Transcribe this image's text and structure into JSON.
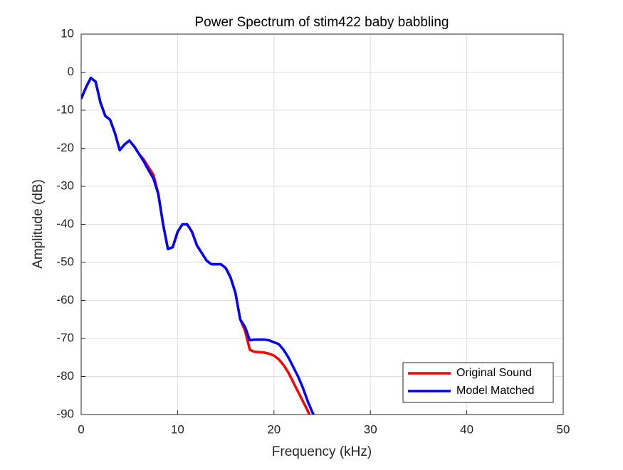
{
  "chart_data": {
    "type": "line",
    "title": "Power Spectrum of stim422 baby babbling",
    "xlabel": "Frequency (kHz)",
    "ylabel": "Amplitude (dB)",
    "x": [
      0,
      0.5,
      1,
      1.5,
      2,
      2.5,
      3,
      3.5,
      4,
      4.5,
      5,
      5.5,
      6,
      6.5,
      7,
      7.5,
      8,
      8.5,
      9,
      9.5,
      10,
      10.5,
      11,
      11.5,
      12,
      12.5,
      13,
      13.5,
      14,
      14.5,
      15,
      15.5,
      16,
      16.5,
      17,
      17.5,
      18,
      18.5,
      19,
      19.5,
      20,
      20.5,
      21,
      21.5,
      22,
      22.5,
      23,
      23.5,
      24,
      24.5
    ],
    "series": [
      {
        "name": "Original Sound",
        "color": "#ff0000",
        "values": [
          -7,
          -4,
          -1.5,
          -2.5,
          -8,
          -11.5,
          -12.5,
          -16,
          -20.5,
          -19,
          -18,
          -19.5,
          -21.5,
          -23,
          -25,
          -27,
          -32,
          -40,
          -46.5,
          -46,
          -42,
          -40,
          -40,
          -42,
          -45.5,
          -47.5,
          -49.5,
          -50.5,
          -50.5,
          -50.5,
          -51.5,
          -54,
          -58,
          -65,
          -68,
          -73,
          -73.5,
          -73.6,
          -73.7,
          -74,
          -74.5,
          -75.5,
          -77,
          -79,
          -81.5,
          -84,
          -86.5,
          -89,
          -92,
          -95
        ]
      },
      {
        "name": "Model Matched",
        "color": "#0000ff",
        "values": [
          -7,
          -4,
          -1.5,
          -2.5,
          -8,
          -11.5,
          -12.5,
          -16,
          -20.5,
          -19,
          -18,
          -19.5,
          -21.5,
          -23.5,
          -25.8,
          -28,
          -32,
          -40,
          -46.5,
          -46,
          -42,
          -40,
          -40,
          -42,
          -45.5,
          -47.5,
          -49.5,
          -50.5,
          -50.5,
          -50.5,
          -51.5,
          -54,
          -58,
          -65,
          -67,
          -70.5,
          -70.3,
          -70.3,
          -70.3,
          -70.5,
          -71,
          -71.5,
          -73,
          -75,
          -77.5,
          -80,
          -83,
          -86.5,
          -89.5,
          -92
        ]
      }
    ],
    "xlim": [
      0,
      50
    ],
    "xticks": [
      0,
      10,
      20,
      30,
      40,
      50
    ],
    "ylim": [
      -90,
      10
    ],
    "yticks": [
      -90,
      -80,
      -70,
      -60,
      -50,
      -40,
      -30,
      -20,
      -10,
      0,
      10
    ],
    "grid": true,
    "legend": "southeast"
  }
}
